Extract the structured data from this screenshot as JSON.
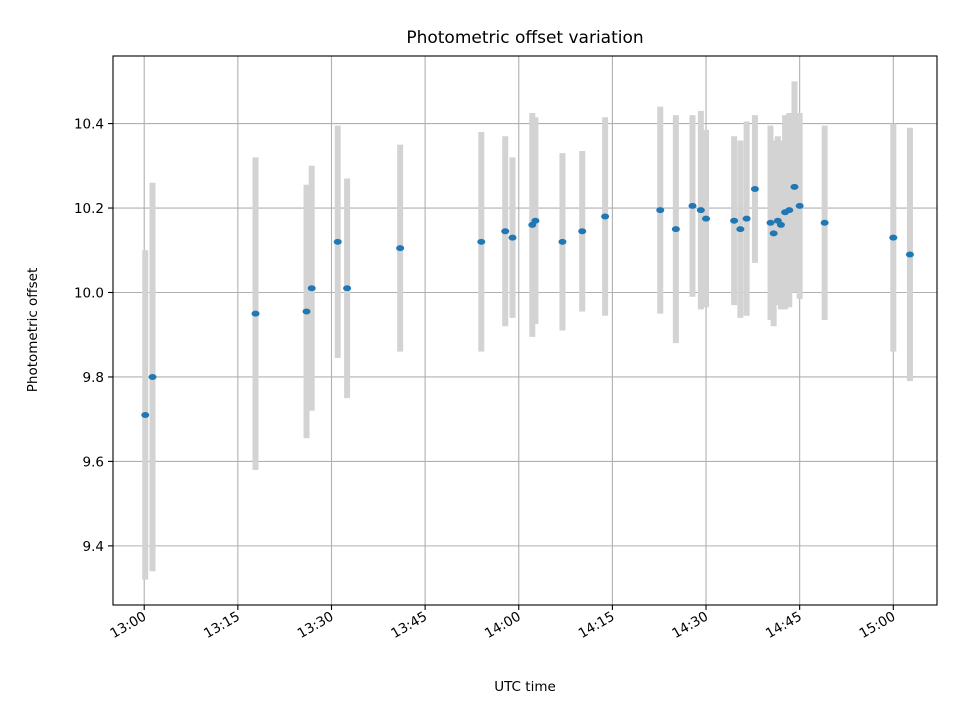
{
  "chart_data": {
    "type": "scatter",
    "title": "Photometric offset variation",
    "xlabel": "UTC time",
    "ylabel": "Photometric offset",
    "xlim": [
      "12:55",
      "15:07"
    ],
    "ylim": [
      9.26,
      10.56
    ],
    "x_ticks": [
      "13:00",
      "13:15",
      "13:30",
      "13:45",
      "14:00",
      "14:15",
      "14:30",
      "14:45",
      "15:00"
    ],
    "y_ticks": [
      9.4,
      9.6,
      9.8,
      10.0,
      10.2,
      10.4
    ],
    "grid": true,
    "legend": "none",
    "colors": {
      "marker": "#1f77b4",
      "errorbar": "#d3d3d3",
      "grid": "#b0b0b0"
    },
    "series": [
      {
        "points": [
          {
            "t": "13:00:10",
            "y": 9.71,
            "err": 0.39
          },
          {
            "t": "13:01:20",
            "y": 9.8,
            "err": 0.46
          },
          {
            "t": "13:17:50",
            "y": 9.95,
            "err": 0.37
          },
          {
            "t": "13:26:00",
            "y": 9.955,
            "err": 0.3
          },
          {
            "t": "13:26:50",
            "y": 10.01,
            "err": 0.29
          },
          {
            "t": "13:31:00",
            "y": 10.12,
            "err": 0.275
          },
          {
            "t": "13:32:30",
            "y": 10.01,
            "err": 0.26
          },
          {
            "t": "13:41:00",
            "y": 10.105,
            "err": 0.245
          },
          {
            "t": "13:54:00",
            "y": 10.12,
            "err": 0.26
          },
          {
            "t": "13:57:50",
            "y": 10.145,
            "err": 0.225
          },
          {
            "t": "13:59:00",
            "y": 10.13,
            "err": 0.19
          },
          {
            "t": "14:02:10",
            "y": 10.16,
            "err": 0.265
          },
          {
            "t": "14:02:40",
            "y": 10.17,
            "err": 0.245
          },
          {
            "t": "14:07:00",
            "y": 10.12,
            "err": 0.21
          },
          {
            "t": "14:10:10",
            "y": 10.145,
            "err": 0.19
          },
          {
            "t": "14:13:50",
            "y": 10.18,
            "err": 0.235
          },
          {
            "t": "14:22:40",
            "y": 10.195,
            "err": 0.245
          },
          {
            "t": "14:25:10",
            "y": 10.15,
            "err": 0.27
          },
          {
            "t": "14:27:50",
            "y": 10.205,
            "err": 0.215
          },
          {
            "t": "14:29:10",
            "y": 10.195,
            "err": 0.235
          },
          {
            "t": "14:30:00",
            "y": 10.175,
            "err": 0.21
          },
          {
            "t": "14:34:30",
            "y": 10.17,
            "err": 0.2
          },
          {
            "t": "14:35:30",
            "y": 10.15,
            "err": 0.21
          },
          {
            "t": "14:36:30",
            "y": 10.175,
            "err": 0.23
          },
          {
            "t": "14:37:50",
            "y": 10.245,
            "err": 0.175
          },
          {
            "t": "14:40:20",
            "y": 10.165,
            "err": 0.23
          },
          {
            "t": "14:40:50",
            "y": 10.14,
            "err": 0.22
          },
          {
            "t": "14:41:30",
            "y": 10.17,
            "err": 0.2
          },
          {
            "t": "14:42:00",
            "y": 10.16,
            "err": 0.2
          },
          {
            "t": "14:42:40",
            "y": 10.19,
            "err": 0.23
          },
          {
            "t": "14:43:20",
            "y": 10.195,
            "err": 0.23
          },
          {
            "t": "14:44:10",
            "y": 10.25,
            "err": 0.25
          },
          {
            "t": "14:45:00",
            "y": 10.205,
            "err": 0.22
          },
          {
            "t": "14:49:00",
            "y": 10.165,
            "err": 0.23
          },
          {
            "t": "15:00:00",
            "y": 10.13,
            "err": 0.27
          },
          {
            "t": "15:02:40",
            "y": 10.09,
            "err": 0.3
          }
        ]
      }
    ]
  }
}
